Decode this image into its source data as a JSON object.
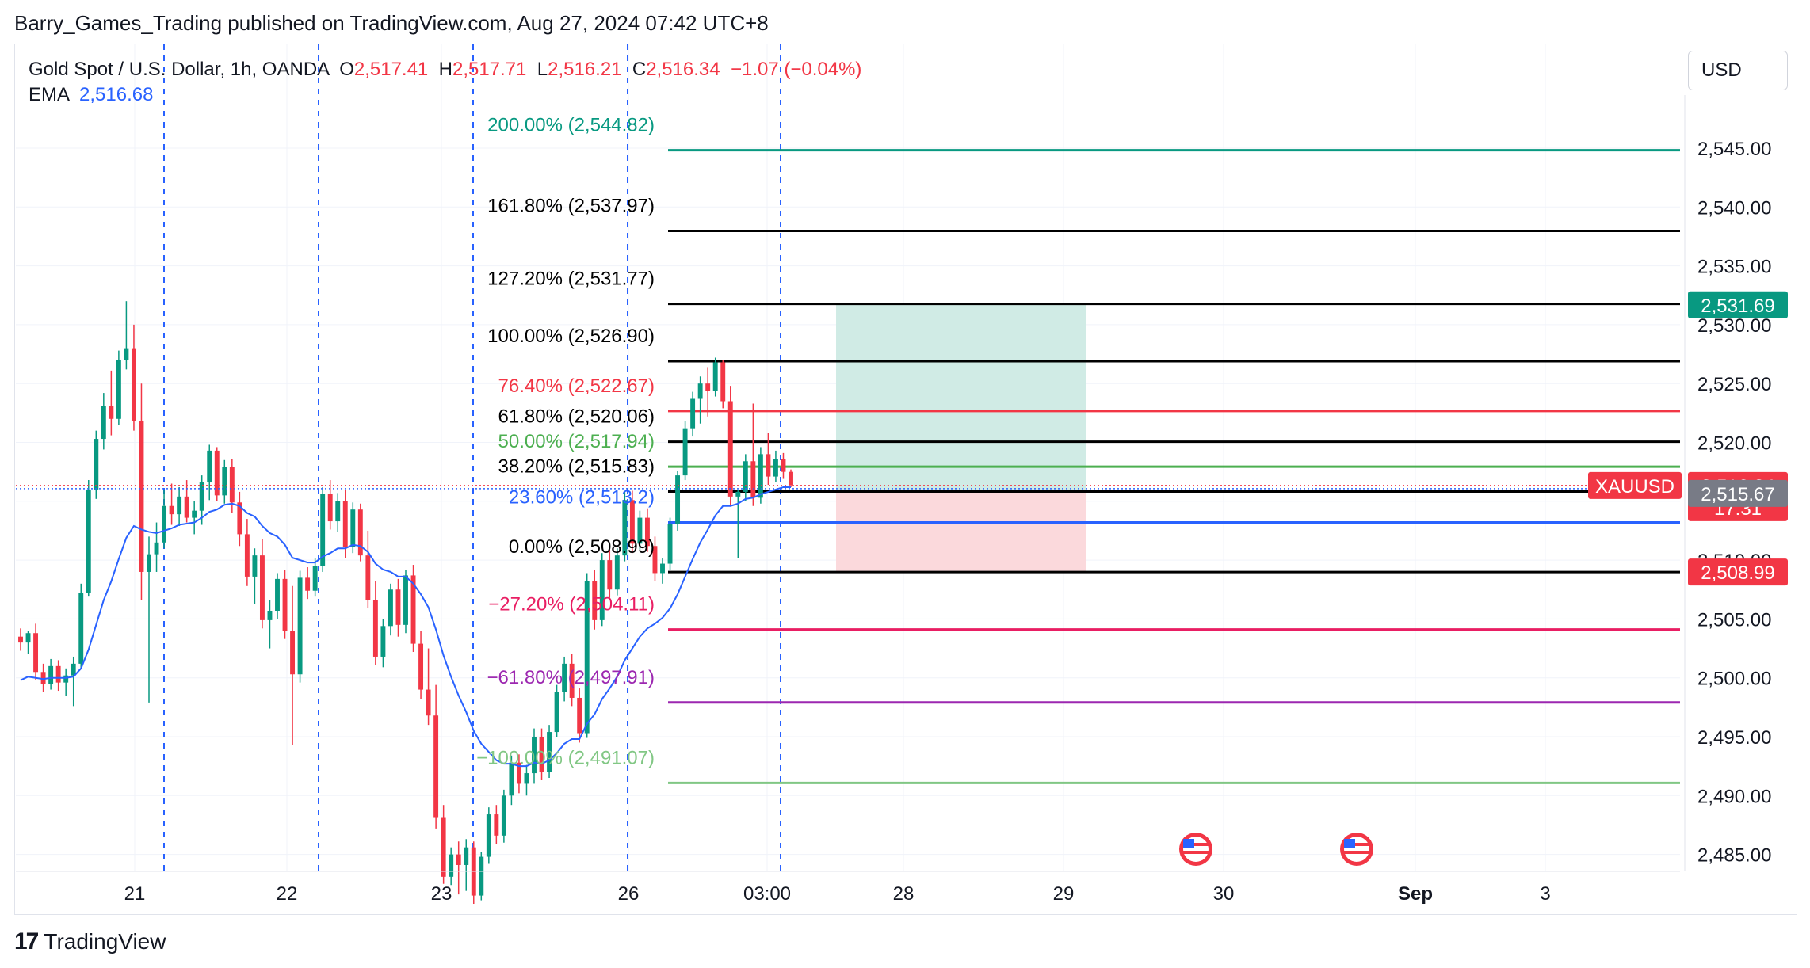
{
  "header": {
    "published": "Barry_Games_Trading published on TradingView.com, Aug 27, 2024 07:42 UTC+8"
  },
  "legend": {
    "symbol": "Gold Spot / U.S. Dollar, 1h, OANDA",
    "o_label": "O",
    "o_value": "2,517.41",
    "h_label": "H",
    "h_value": "2,517.71",
    "l_label": "L",
    "l_value": "2,516.21",
    "c_label": "C",
    "c_value": "2,516.34",
    "change": "−1.07 (−0.04%)",
    "ema_label": "EMA",
    "ema_value": "2,516.68"
  },
  "currency_button": "USD",
  "footer": {
    "brand": "TradingView",
    "logo": "17"
  },
  "colors": {
    "up": "#089981",
    "down": "#f23645",
    "ema": "#2962ff",
    "teal_fib": "#089981",
    "black_fib": "#000000",
    "red_fib": "#f23645",
    "green_fib": "#4caf50",
    "blue_fib": "#2962ff",
    "pink_fib": "#e91e63",
    "purple_fib": "#9c27b0",
    "lightgreen_fib": "#81c784",
    "target_zone": "#d0ebe5",
    "stop_zone": "#fbd9dc"
  },
  "chart_data": {
    "type": "candlestick",
    "symbol": "XAUUSD",
    "timeframe": "1h",
    "ylim": [
      2483,
      2550
    ],
    "y_ticks": [
      "2,545.00",
      "2,540.00",
      "2,535.00",
      "2,530.00",
      "2,525.00",
      "2,520.00",
      "2,515.00",
      "2,510.00",
      "2,505.00",
      "2,500.00",
      "2,495.00",
      "2,490.00",
      "2,485.00"
    ],
    "x_ticks": [
      "21",
      "22",
      "23",
      "26",
      "03:00",
      "28",
      "29",
      "30",
      "Sep",
      "3"
    ],
    "fib_levels": [
      {
        "label": "200.00% (2,544.82)",
        "price": 2544.82,
        "color": "#089981"
      },
      {
        "label": "161.80% (2,537.97)",
        "price": 2537.97,
        "color": "#000000"
      },
      {
        "label": "127.20% (2,531.77)",
        "price": 2531.77,
        "color": "#000000"
      },
      {
        "label": "100.00% (2,526.90)",
        "price": 2526.9,
        "color": "#000000"
      },
      {
        "label": "76.40% (2,522.67)",
        "price": 2522.67,
        "color": "#f23645"
      },
      {
        "label": "61.80% (2,520.06)",
        "price": 2520.06,
        "color": "#000000"
      },
      {
        "label": "50.00% (2,517.94)",
        "price": 2517.94,
        "color": "#4caf50"
      },
      {
        "label": "38.20% (2,515.83)",
        "price": 2515.83,
        "color": "#000000"
      },
      {
        "label": "23.60% (2,513.2)",
        "price": 2513.2,
        "color": "#2962ff"
      },
      {
        "label": "0.00% (2,508.99)",
        "price": 2508.99,
        "color": "#000000"
      },
      {
        "label": "−27.20% (2,504.11)",
        "price": 2504.11,
        "color": "#e91e63"
      },
      {
        "label": "−61.80% (2,497.91)",
        "price": 2497.91,
        "color": "#9c27b0"
      },
      {
        "label": "−100.00% (2,491.07)",
        "price": 2491.07,
        "color": "#81c784"
      }
    ],
    "price_badges": [
      {
        "text": "2,531.69",
        "price": 2531.69,
        "bg": "#089981",
        "fg": "#ffffff"
      },
      {
        "text": "2,516.34",
        "price": 2516.34,
        "bg": "#f23645",
        "fg": "#ffffff",
        "sub": "17:31"
      },
      {
        "text": "2,515.67",
        "price": 2515.67,
        "bg": "#787b86",
        "fg": "#ffffff"
      },
      {
        "text": "2,508.99",
        "price": 2508.99,
        "bg": "#f23645",
        "fg": "#ffffff"
      }
    ],
    "symbol_tag": "XAUUSD",
    "current_price": 2516.34,
    "position": {
      "entry": 2515.9,
      "target": 2531.69,
      "stop": 2508.99
    },
    "candles": [
      [
        2503.5,
        2504.2,
        2502.3,
        2503.0
      ],
      [
        2503.0,
        2504.0,
        2502.0,
        2503.8
      ],
      [
        2503.8,
        2504.6,
        2499.8,
        2500.5
      ],
      [
        2500.5,
        2501.2,
        2498.8,
        2499.5
      ],
      [
        2499.5,
        2501.6,
        2499.0,
        2501.0
      ],
      [
        2501.0,
        2501.5,
        2498.9,
        2499.6
      ],
      [
        2499.6,
        2500.8,
        2498.5,
        2500.2
      ],
      [
        2500.2,
        2501.8,
        2497.6,
        2501.2
      ],
      [
        2501.2,
        2508.0,
        2500.8,
        2507.2
      ],
      [
        2507.2,
        2516.8,
        2506.9,
        2516.0
      ],
      [
        2516.0,
        2521.0,
        2515.2,
        2520.3
      ],
      [
        2520.3,
        2524.2,
        2519.4,
        2523.1
      ],
      [
        2523.1,
        2526.1,
        2520.6,
        2522.0
      ],
      [
        2522.0,
        2527.8,
        2521.5,
        2527.0
      ],
      [
        2527.0,
        2532.0,
        2526.2,
        2528.0
      ],
      [
        2528.0,
        2530.0,
        2521.0,
        2521.8
      ],
      [
        2521.8,
        2525.0,
        2506.6,
        2509.0
      ],
      [
        2509.0,
        2512.0,
        2497.9,
        2510.5
      ],
      [
        2510.5,
        2513.2,
        2509.0,
        2511.5
      ],
      [
        2511.5,
        2516.0,
        2511.0,
        2514.6
      ],
      [
        2514.6,
        2516.5,
        2513.0,
        2513.9
      ],
      [
        2513.9,
        2516.2,
        2512.9,
        2515.4
      ],
      [
        2515.4,
        2516.8,
        2513.2,
        2513.6
      ],
      [
        2513.6,
        2515.0,
        2512.2,
        2514.2
      ],
      [
        2514.2,
        2517.2,
        2513.0,
        2516.6
      ],
      [
        2516.6,
        2519.8,
        2515.1,
        2519.3
      ],
      [
        2519.3,
        2519.6,
        2515.0,
        2515.5
      ],
      [
        2515.5,
        2518.5,
        2514.8,
        2517.9
      ],
      [
        2517.9,
        2518.6,
        2514.0,
        2514.9
      ],
      [
        2514.9,
        2515.8,
        2511.2,
        2512.2
      ],
      [
        2512.2,
        2513.5,
        2507.8,
        2508.6
      ],
      [
        2508.6,
        2511.0,
        2506.3,
        2510.4
      ],
      [
        2510.4,
        2511.8,
        2504.2,
        2504.9
      ],
      [
        2504.9,
        2506.6,
        2502.5,
        2505.7
      ],
      [
        2505.7,
        2508.9,
        2505.0,
        2508.4
      ],
      [
        2508.4,
        2509.2,
        2503.3,
        2504.0
      ],
      [
        2504.0,
        2507.8,
        2494.3,
        2500.3
      ],
      [
        2500.3,
        2509.1,
        2499.6,
        2508.5
      ],
      [
        2508.5,
        2509.4,
        2506.7,
        2507.4
      ],
      [
        2507.4,
        2510.2,
        2506.9,
        2509.5
      ],
      [
        2509.5,
        2516.2,
        2509.0,
        2515.6
      ],
      [
        2515.6,
        2516.8,
        2512.6,
        2513.3
      ],
      [
        2513.3,
        2515.7,
        2512.4,
        2515.0
      ],
      [
        2515.0,
        2516.0,
        2510.2,
        2511.1
      ],
      [
        2511.1,
        2514.9,
        2510.6,
        2514.3
      ],
      [
        2514.3,
        2514.8,
        2509.9,
        2510.4
      ],
      [
        2510.4,
        2512.5,
        2505.9,
        2506.6
      ],
      [
        2506.6,
        2508.2,
        2501.1,
        2501.8
      ],
      [
        2501.8,
        2505.0,
        2500.9,
        2504.4
      ],
      [
        2504.4,
        2508.0,
        2503.6,
        2507.5
      ],
      [
        2507.5,
        2508.4,
        2503.5,
        2504.5
      ],
      [
        2504.5,
        2509.2,
        2503.8,
        2508.7
      ],
      [
        2508.7,
        2509.6,
        2502.2,
        2502.9
      ],
      [
        2502.9,
        2504.0,
        2498.2,
        2499.0
      ],
      [
        2499.0,
        2502.5,
        2496.0,
        2496.8
      ],
      [
        2496.8,
        2499.4,
        2487.2,
        2488.1
      ],
      [
        2488.1,
        2489.2,
        2482.5,
        2483.1
      ],
      [
        2483.1,
        2485.6,
        2482.4,
        2485.0
      ],
      [
        2485.0,
        2486.1,
        2481.6,
        2484.1
      ],
      [
        2484.1,
        2486.3,
        2481.9,
        2485.6
      ],
      [
        2485.6,
        2486.1,
        2480.8,
        2481.5
      ],
      [
        2481.5,
        2485.2,
        2481.1,
        2484.8
      ],
      [
        2484.8,
        2489.0,
        2484.2,
        2488.4
      ],
      [
        2488.4,
        2489.2,
        2485.9,
        2486.6
      ],
      [
        2486.6,
        2490.5,
        2486.0,
        2490.0
      ],
      [
        2490.0,
        2493.4,
        2489.2,
        2492.8
      ],
      [
        2492.8,
        2493.5,
        2490.2,
        2491.0
      ],
      [
        2491.0,
        2492.6,
        2490.0,
        2491.9
      ],
      [
        2491.9,
        2495.7,
        2491.0,
        2495.0
      ],
      [
        2495.0,
        2495.7,
        2491.3,
        2492.0
      ],
      [
        2492.0,
        2496.0,
        2491.5,
        2495.4
      ],
      [
        2495.4,
        2499.4,
        2495.0,
        2498.8
      ],
      [
        2498.8,
        2501.8,
        2498.0,
        2501.2
      ],
      [
        2501.2,
        2502.0,
        2497.6,
        2498.3
      ],
      [
        2498.3,
        2499.1,
        2494.5,
        2495.3
      ],
      [
        2495.3,
        2508.9,
        2494.9,
        2508.2
      ],
      [
        2508.2,
        2509.2,
        2504.1,
        2504.9
      ],
      [
        2504.9,
        2510.6,
        2504.4,
        2510.0
      ],
      [
        2510.0,
        2510.9,
        2506.8,
        2507.5
      ],
      [
        2507.5,
        2511.0,
        2507.0,
        2510.4
      ],
      [
        2510.4,
        2515.8,
        2509.9,
        2515.1
      ],
      [
        2515.1,
        2515.9,
        2510.6,
        2511.4
      ],
      [
        2511.4,
        2514.2,
        2510.9,
        2513.6
      ],
      [
        2513.6,
        2514.4,
        2510.7,
        2511.2
      ],
      [
        2511.2,
        2512.0,
        2508.2,
        2508.9
      ],
      [
        2508.9,
        2510.2,
        2508.0,
        2509.7
      ],
      [
        2509.7,
        2513.6,
        2509.2,
        2513.1
      ],
      [
        2513.1,
        2517.6,
        2512.5,
        2517.2
      ],
      [
        2517.2,
        2521.8,
        2516.8,
        2521.2
      ],
      [
        2521.2,
        2524.3,
        2520.5,
        2523.7
      ],
      [
        2523.7,
        2525.6,
        2521.6,
        2525.0
      ],
      [
        2525.0,
        2526.4,
        2522.2,
        2524.4
      ],
      [
        2524.4,
        2527.2,
        2523.9,
        2526.8
      ],
      [
        2526.8,
        2527.0,
        2522.9,
        2523.5
      ],
      [
        2523.5,
        2524.8,
        2514.6,
        2515.4
      ],
      [
        2515.4,
        2516.0,
        2510.2,
        2515.8
      ],
      [
        2515.8,
        2519.0,
        2515.0,
        2518.4
      ],
      [
        2518.4,
        2523.3,
        2514.6,
        2515.3
      ],
      [
        2515.3,
        2519.6,
        2514.8,
        2519.0
      ],
      [
        2519.0,
        2520.8,
        2516.4,
        2517.1
      ],
      [
        2517.1,
        2519.3,
        2516.6,
        2518.6
      ],
      [
        2518.6,
        2519.1,
        2516.9,
        2517.5
      ],
      [
        2517.5,
        2517.7,
        2516.2,
        2516.4
      ]
    ],
    "ema": [
      2499.8,
      2500.1,
      2500.0,
      2499.9,
      2500.0,
      2500.0,
      2500.0,
      2500.1,
      2500.8,
      2502.4,
      2504.5,
      2506.6,
      2508.2,
      2510.1,
      2511.9,
      2512.9,
      2512.6,
      2512.4,
      2512.3,
      2512.5,
      2512.7,
      2513.0,
      2513.1,
      2513.2,
      2513.6,
      2514.1,
      2514.3,
      2514.7,
      2514.8,
      2514.6,
      2514.0,
      2513.7,
      2512.9,
      2512.3,
      2512.0,
      2511.3,
      2510.2,
      2510.0,
      2509.8,
      2509.8,
      2510.3,
      2510.6,
      2511.0,
      2511.0,
      2511.3,
      2511.2,
      2510.7,
      2509.7,
      2509.2,
      2509.0,
      2508.6,
      2508.6,
      2508.0,
      2507.1,
      2506.0,
      2504.1,
      2501.9,
      2500.1,
      2498.5,
      2497.1,
      2495.5,
      2494.4,
      2493.7,
      2493.0,
      2492.7,
      2492.7,
      2492.5,
      2492.5,
      2492.8,
      2492.7,
      2493.0,
      2493.6,
      2494.4,
      2494.8,
      2494.8,
      2496.1,
      2496.9,
      2498.2,
      2499.1,
      2500.1,
      2501.5,
      2502.5,
      2503.5,
      2504.2,
      2504.6,
      2505.1,
      2505.9,
      2507.1,
      2508.6,
      2510.1,
      2511.5,
      2512.6,
      2513.8,
      2514.6,
      2514.6,
      2514.8,
      2515.2,
      2515.3,
      2515.6,
      2515.8,
      2516.0,
      2516.2,
      2516.2
    ]
  }
}
